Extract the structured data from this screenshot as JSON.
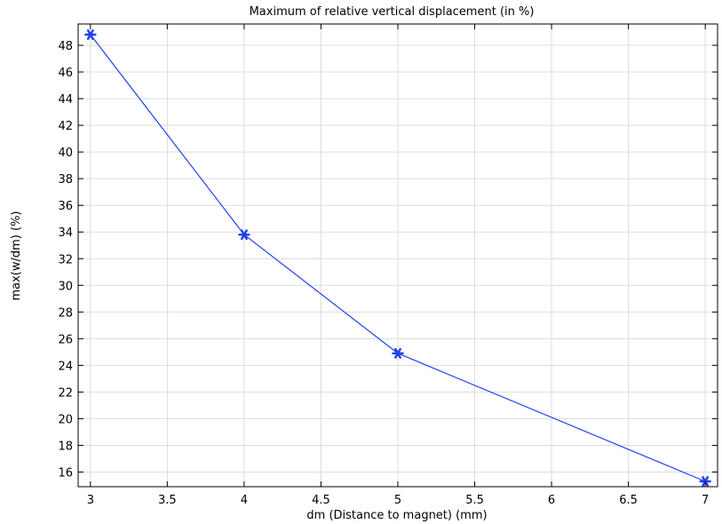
{
  "chart_data": {
    "type": "line",
    "title": "Maximum of relative vertical displacement (in %)",
    "xlabel": "dm (Distance to magnet) (mm)",
    "ylabel": "max(w/dm) (%)",
    "xlim": [
      2.92,
      7.08
    ],
    "ylim": [
      14.9,
      49.6
    ],
    "xticks": [
      3,
      3.5,
      4,
      4.5,
      5,
      5.5,
      6,
      6.5,
      7
    ],
    "xtick_labels": [
      "3",
      "3.5",
      "4",
      "4.5",
      "5",
      "5.5",
      "6",
      "6.5",
      "7"
    ],
    "yticks": [
      16,
      18,
      20,
      22,
      24,
      26,
      28,
      30,
      32,
      34,
      36,
      38,
      40,
      42,
      44,
      46,
      48
    ],
    "ytick_labels": [
      "16",
      "18",
      "20",
      "22",
      "24",
      "26",
      "28",
      "30",
      "32",
      "34",
      "36",
      "38",
      "40",
      "42",
      "44",
      "46",
      "48"
    ],
    "grid": true,
    "series": [
      {
        "x": [
          3,
          4,
          5,
          7
        ],
        "y": [
          48.8,
          33.8,
          24.9,
          15.3
        ],
        "color": "#1f3ff0",
        "marker": "asterisk"
      }
    ]
  }
}
